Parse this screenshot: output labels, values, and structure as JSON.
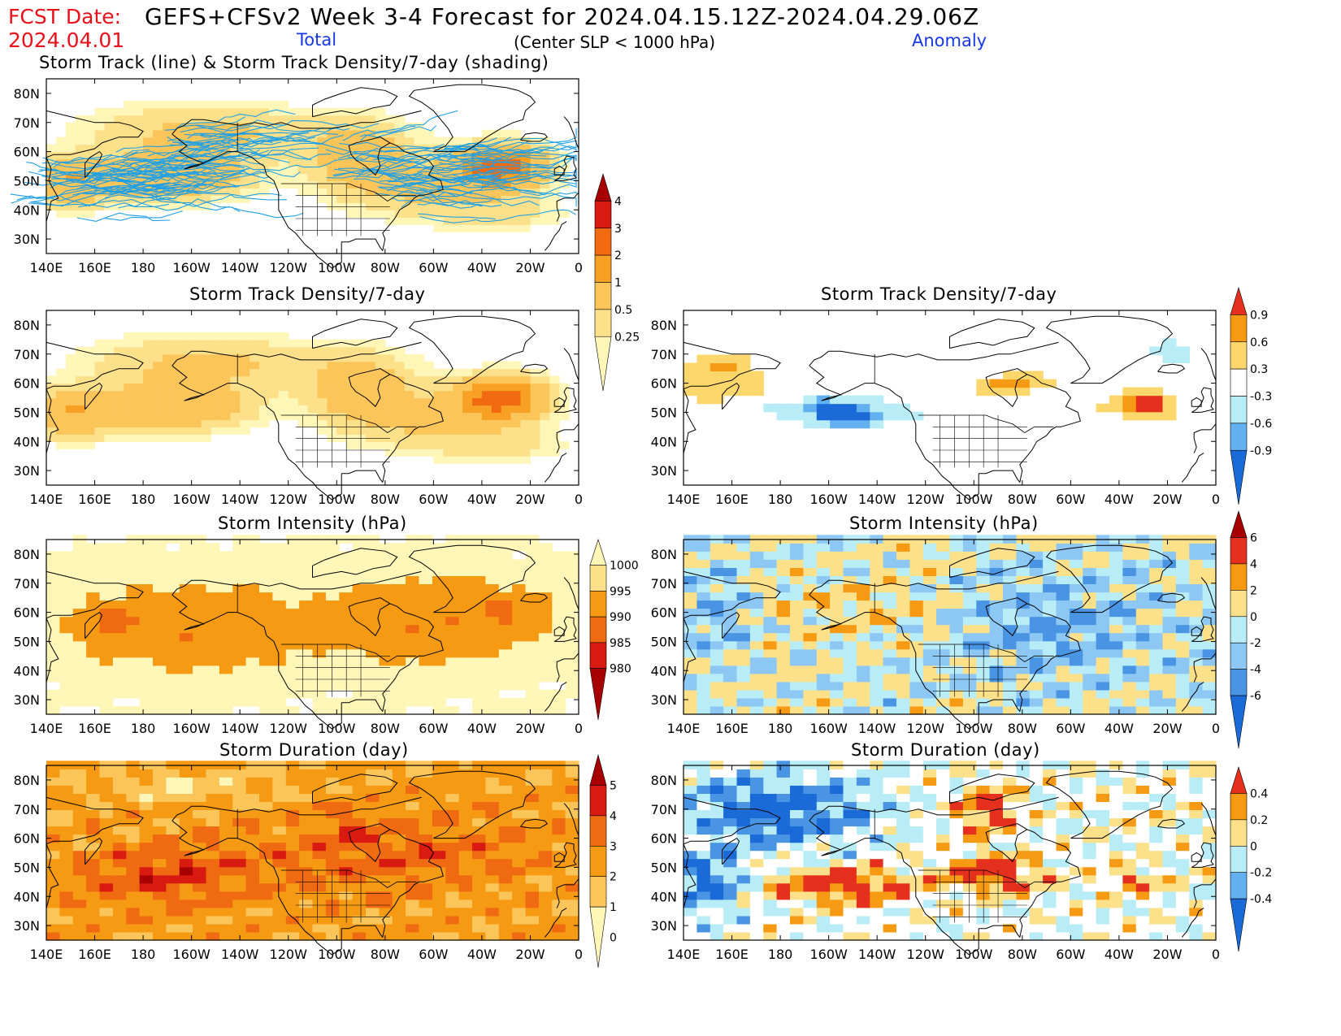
{
  "header": {
    "fcst_label": "FCST Date:",
    "fcst_date": "2024.04.01",
    "title": "GEFS+CFSv2 Week 3-4 Forecast for 2024.04.15.12Z-2024.04.29.06Z",
    "total_label": "Total",
    "subtitle": "(Center SLP < 1000 hPa)",
    "anomaly_label": "Anomaly"
  },
  "axes": {
    "lat_labels": [
      "80N",
      "70N",
      "60N",
      "50N",
      "40N",
      "30N"
    ],
    "lon_labels": [
      "140E",
      "160E",
      "180",
      "160W",
      "140W",
      "120W",
      "100W",
      "80W",
      "60W",
      "40W",
      "20W",
      "0"
    ]
  },
  "panels": [
    {
      "id": "track-total",
      "title": "Storm Track (line) & Storm Track Density/7-day (shading)",
      "field": "density",
      "tracks": true
    },
    {
      "id": "density-total",
      "title": "Storm Track Density/7-day",
      "field": "density"
    },
    {
      "id": "density-anom",
      "title": "Storm Track Density/7-day",
      "field": "density_anom"
    },
    {
      "id": "intensity-total",
      "title": "Storm Intensity (hPa)",
      "field": "intensity"
    },
    {
      "id": "intensity-anom",
      "title": "Storm Intensity (hPa)",
      "field": "intensity_anom"
    },
    {
      "id": "duration-total",
      "title": "Storm Duration (day)",
      "field": "duration"
    },
    {
      "id": "duration-anom",
      "title": "Storm Duration (day)",
      "field": "duration_anom"
    }
  ],
  "colorbars": [
    {
      "id": "density-total",
      "labels": [
        "4",
        "3",
        "2",
        "1",
        "0.5",
        "0.25"
      ],
      "colors": [
        "#a80000",
        "#d81a10",
        "#f26a10",
        "#f7a024",
        "#fbc55a",
        "#fde08a",
        "#fff6b8"
      ]
    },
    {
      "id": "density-anom",
      "labels": [
        "0.9",
        "0.6",
        "0.3",
        "-0.3",
        "-0.6",
        "-0.9"
      ],
      "colors": [
        "#e4301c",
        "#f59a12",
        "#fdd76c",
        "#ffffff",
        "#b8ecf6",
        "#62b0ef",
        "#1a6ad8"
      ]
    },
    {
      "id": "intensity-total",
      "labels": [
        "1000",
        "995",
        "990",
        "985",
        "980"
      ],
      "colors": [
        "#fff6b8",
        "#fde08a",
        "#f59a12",
        "#f06a12",
        "#d81a10",
        "#a80000"
      ]
    },
    {
      "id": "intensity-anom",
      "labels": [
        "6",
        "4",
        "2",
        "0",
        "-2",
        "-4",
        "-6"
      ],
      "colors": [
        "#a80000",
        "#e4301c",
        "#f59a12",
        "#fde08a",
        "#b8ecf6",
        "#8cc8f3",
        "#4a94e4",
        "#1a6ad8"
      ]
    },
    {
      "id": "duration-total",
      "labels": [
        "5",
        "4",
        "3",
        "2",
        "1",
        "0"
      ],
      "colors": [
        "#a80000",
        "#d81a10",
        "#f06a12",
        "#f59a12",
        "#fbc55a",
        "#fff6b8"
      ]
    },
    {
      "id": "duration-anom",
      "labels": [
        "0.4",
        "0.2",
        "0",
        "-0.2",
        "-0.4"
      ],
      "colors": [
        "#e4301c",
        "#f59a12",
        "#fde08a",
        "#b8ecf6",
        "#62b0ef",
        "#1a6ad8"
      ]
    }
  ]
}
